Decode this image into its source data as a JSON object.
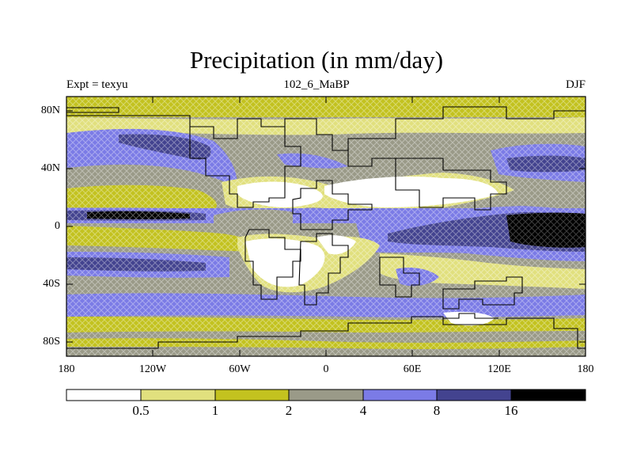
{
  "title": "Precipitation (in mm/day)",
  "left_string": "Expt = texyu",
  "center_string": "102_6_MaBP",
  "right_string": "DJF",
  "lat_ticks": [
    "80N",
    "40N",
    "0",
    "40S",
    "80S"
  ],
  "lon_ticks": [
    "180",
    "120W",
    "60W",
    "0",
    "60E",
    "120E",
    "180"
  ],
  "colorbar": {
    "levels": [
      "0.5",
      "1",
      "2",
      "4",
      "8",
      "16"
    ],
    "colors": [
      "#ffffff",
      "#e1e07e",
      "#c3c21f",
      "#9a9a88",
      "#7b7be6",
      "#43438f",
      "#000000"
    ],
    "units": "mm/day"
  },
  "map": {
    "projection": "cylindrical-equidistant",
    "lat_range": [
      -90,
      90
    ],
    "lon_range": [
      -180,
      180
    ],
    "coastlines": true,
    "fill": "contour",
    "pattern": "cross-hatch"
  }
}
